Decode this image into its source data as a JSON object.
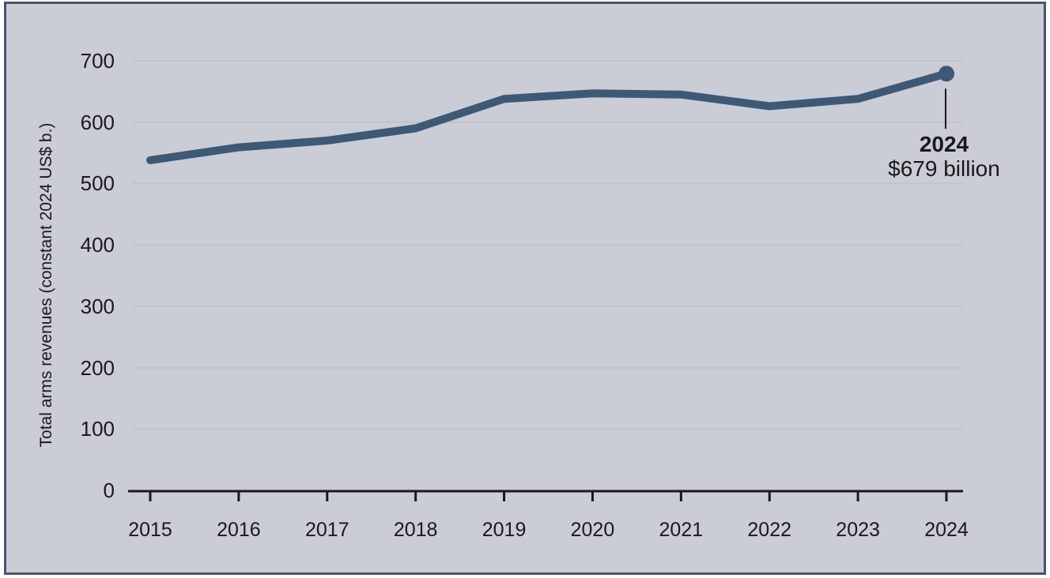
{
  "chart": {
    "ylabel": "Total arms revenues (constant 2024 US$ b.)",
    "annotation": {
      "year": "2024",
      "value": "$679 billion"
    }
  },
  "chart_data": {
    "type": "line",
    "x": [
      2015,
      2016,
      2017,
      2018,
      2019,
      2020,
      2021,
      2022,
      2023,
      2024
    ],
    "series": [
      {
        "name": "Total arms revenues",
        "values": [
          538,
          559,
          570,
          590,
          638,
          647,
          645,
          626,
          638,
          679
        ]
      }
    ],
    "title": "",
    "xlabel": "",
    "ylabel": "Total arms revenues (constant 2024 US$ b.)",
    "ylim": [
      0,
      700
    ],
    "yticks": [
      0,
      100,
      200,
      300,
      400,
      500,
      600,
      700
    ],
    "grid": true,
    "legend": false,
    "marker_on_last_point": true,
    "annotation": {
      "x": 2024,
      "y": 679,
      "label": "2024",
      "value": "$679 billion"
    },
    "colors": {
      "line": "#3d5976",
      "background": "#caccd6",
      "panel_border": "#46566c",
      "gridline": "#c0c3cb",
      "axis": "#1a1a1a",
      "text": "#1a1a1a"
    }
  }
}
